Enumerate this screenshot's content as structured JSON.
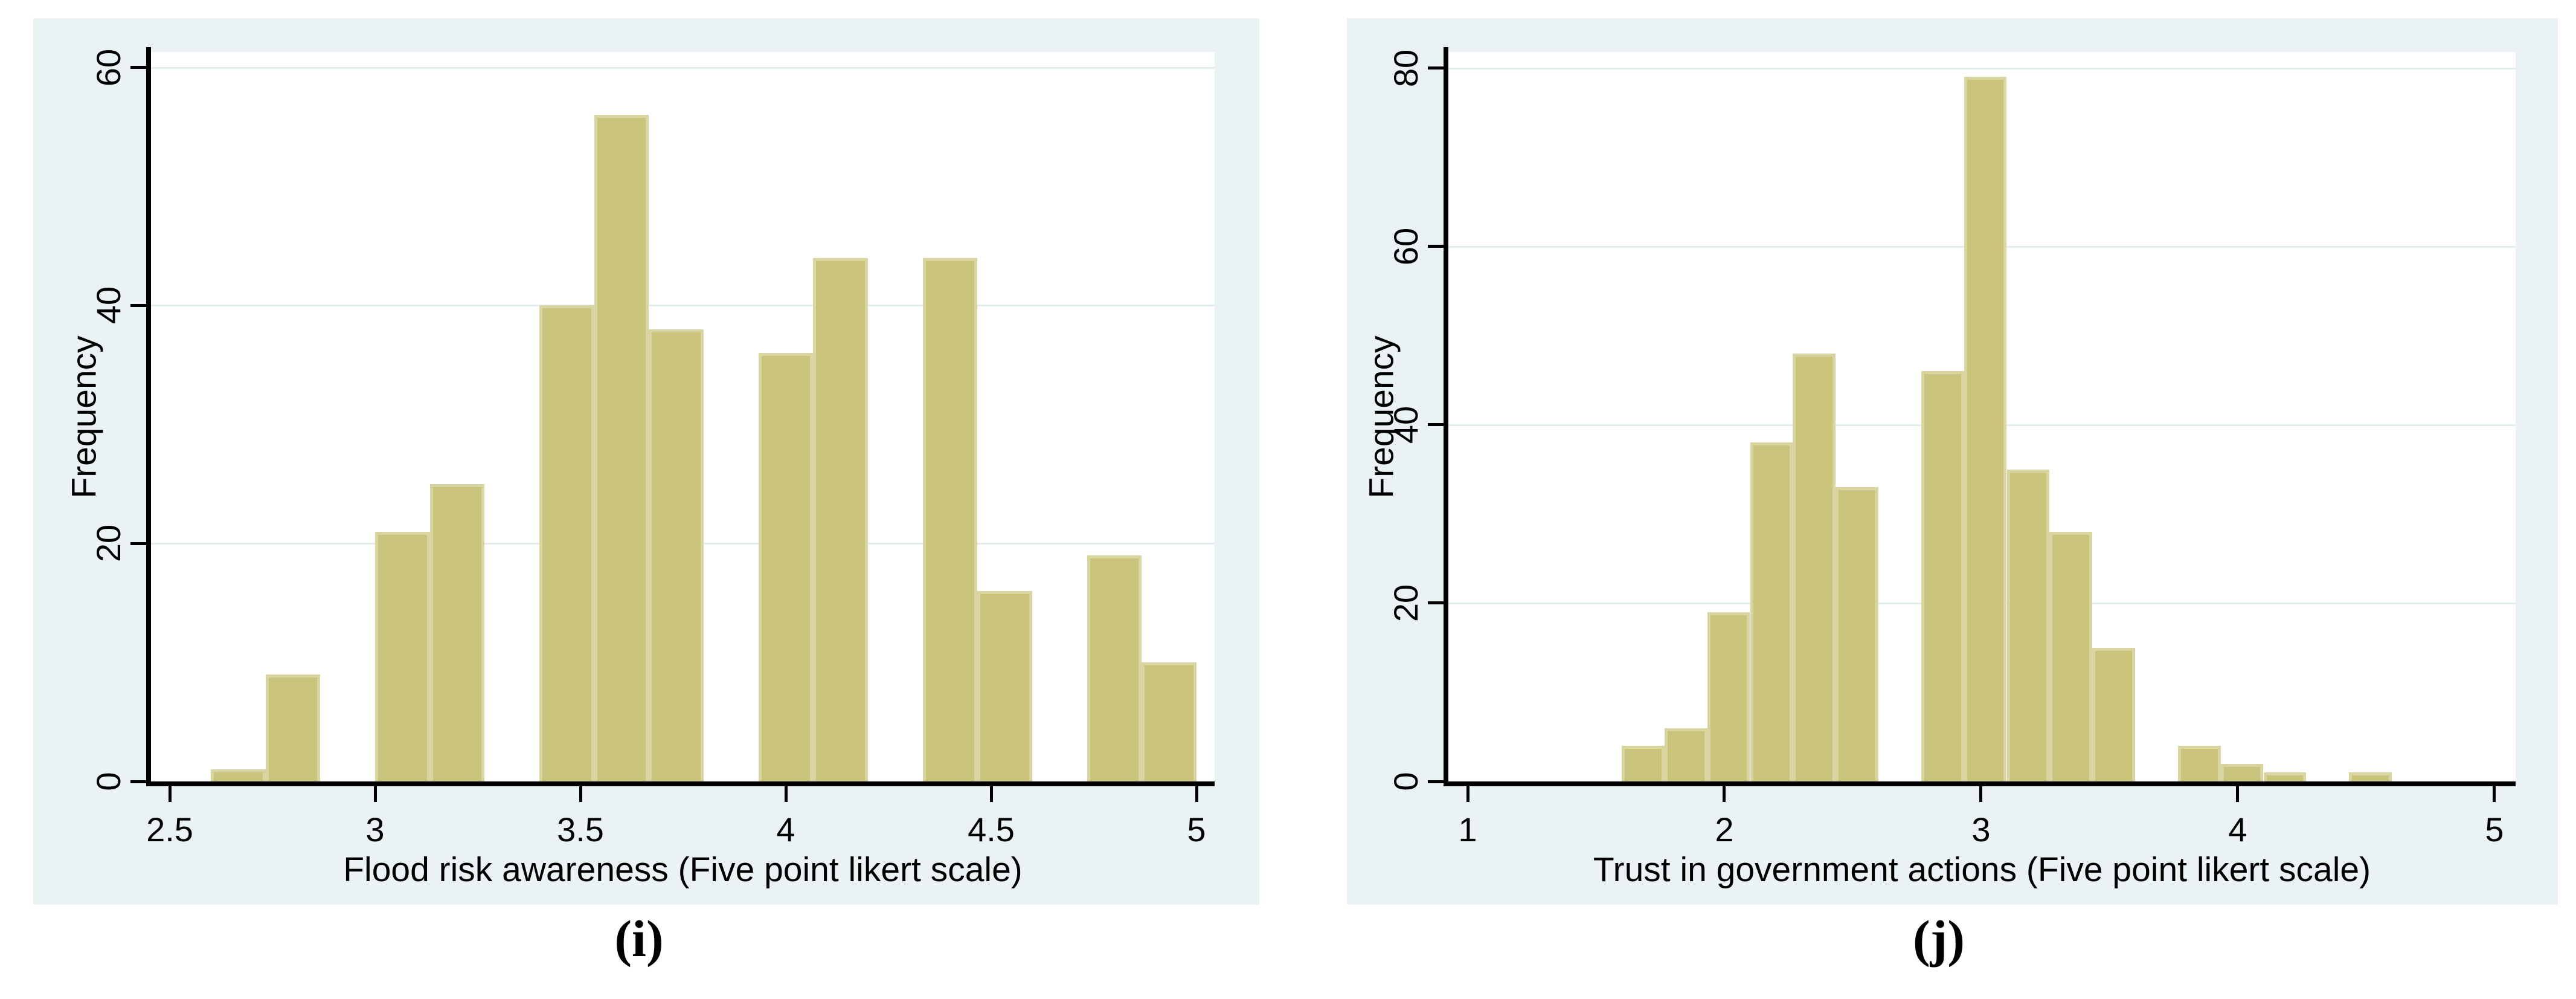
{
  "figure": {
    "caption_i": "(i)",
    "caption_j": "(j)"
  },
  "style": {
    "panel_bg": "#eaf2f3",
    "plot_bg": "#ffffff",
    "grid_color": "#e3edef",
    "axis_color": "#000000",
    "bar_fill": "#cac37b",
    "bar_edge": "#d9d5a1",
    "text_color": "#000000"
  },
  "chart_data": [
    {
      "id": "i",
      "type": "bar",
      "subtype": "histogram",
      "caption": "(i)",
      "title": "",
      "xlabel": "Flood risk awareness (Five point likert scale)",
      "ylabel": "Frequency",
      "x_ticks": [
        "2.5",
        "3",
        "3.5",
        "4",
        "4.5",
        "5"
      ],
      "x_tick_values": [
        2.5,
        3,
        3.5,
        4,
        4.5,
        5
      ],
      "y_ticks": [
        "0",
        "20",
        "40",
        "60"
      ],
      "y_tick_values": [
        0,
        20,
        40,
        60
      ],
      "x_axis_range": [
        2.4544,
        5.0441
      ],
      "y_axis_range": [
        0,
        61.3
      ],
      "grid": true,
      "legend_position": "none",
      "bin_start": 2.6,
      "bin_width": 0.1333333,
      "bin_counts": [
        1,
        9,
        0,
        21,
        25,
        0,
        40,
        56,
        38,
        0,
        36,
        44,
        0,
        44,
        16,
        0,
        19,
        10
      ],
      "total_n": 359
    },
    {
      "id": "j",
      "type": "bar",
      "subtype": "histogram",
      "caption": "(j)",
      "title": "",
      "xlabel": "Trust in government actions (Five point likert scale)",
      "ylabel": "Frequency",
      "x_ticks": [
        "1",
        "2",
        "3",
        "4",
        "5"
      ],
      "x_tick_values": [
        1,
        2,
        3,
        4,
        5
      ],
      "y_ticks": [
        "0",
        "20",
        "40",
        "60",
        "80"
      ],
      "y_tick_values": [
        0,
        20,
        40,
        60,
        80
      ],
      "x_axis_range": [
        0.9247,
        5.0824
      ],
      "y_axis_range": [
        0,
        81.8
      ],
      "grid": true,
      "legend_position": "none",
      "bin_start": 1.6,
      "bin_width": 0.1666667,
      "bin_counts": [
        4,
        6,
        19,
        38,
        48,
        33,
        0,
        46,
        79,
        35,
        28,
        15,
        0,
        4,
        2,
        1,
        0,
        1
      ],
      "total_n": 359
    }
  ]
}
